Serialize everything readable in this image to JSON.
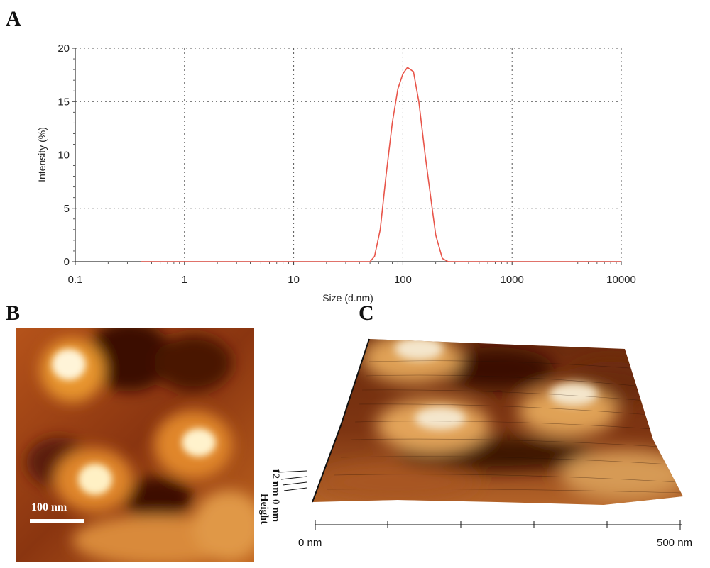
{
  "panels": {
    "a": "A",
    "b": "B",
    "c": "C"
  },
  "chart_data": {
    "type": "line",
    "title": "",
    "xlabel": "Size (d.nm)",
    "ylabel": "Intensity (%)",
    "xscale": "log",
    "xlim": [
      0.1,
      10000
    ],
    "ylim": [
      0,
      20
    ],
    "xticks": [
      "0.1",
      "1",
      "10",
      "100",
      "1000",
      "10000"
    ],
    "yticks": [
      "0",
      "5",
      "10",
      "15",
      "20"
    ],
    "grid": true,
    "series": [
      {
        "color": "#e8554a",
        "x": [
          0.4,
          10,
          50,
          55,
          62,
          70,
          80,
          90,
          100,
          110,
          125,
          140,
          160,
          180,
          200,
          230,
          260,
          1000,
          10000
        ],
        "y": [
          0,
          0,
          0,
          0.5,
          3,
          8,
          13,
          16.2,
          17.6,
          18.2,
          17.8,
          15,
          10,
          6,
          2.5,
          0.3,
          0,
          0,
          0
        ]
      }
    ]
  },
  "afm": {
    "scale_bar": "100 nm",
    "height_label": "Height",
    "height_max": "12 nm",
    "height_min": "0 nm",
    "x_start": "0 nm",
    "x_end": "500 nm"
  }
}
